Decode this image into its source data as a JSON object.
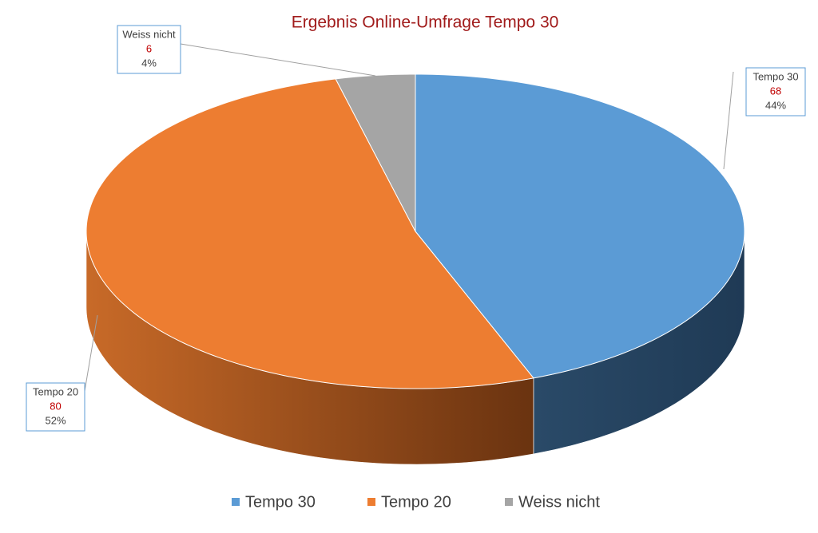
{
  "chart_data": {
    "type": "pie3d",
    "title": "Ergebnis Online-Umfrage Tempo 30",
    "categories": [
      "Tempo 30",
      "Tempo 20",
      "Weiss nicht"
    ],
    "values": [
      68,
      80,
      6
    ],
    "percent_labels": [
      "44%",
      "52%",
      "4%"
    ],
    "colors": [
      "#5b9bd5",
      "#ed7d31",
      "#a5a5a5"
    ],
    "legend": "bottom"
  }
}
